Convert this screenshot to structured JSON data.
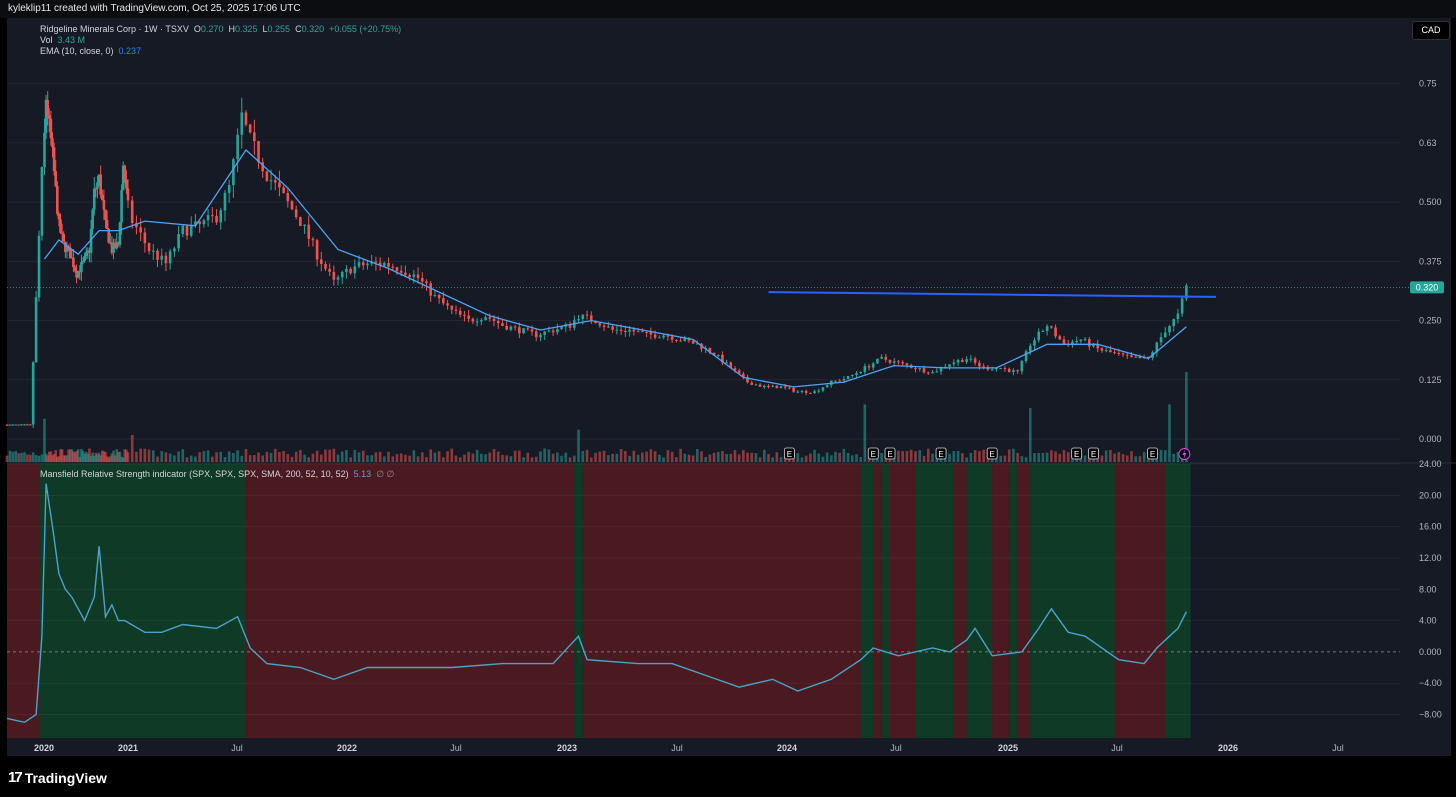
{
  "header": {
    "credit": "kyleklip11 created with TradingView.com, Oct 25, 2025 17:06 UTC"
  },
  "legend": {
    "symbol": "Ridgeline Minerals Corp · 1W · TSXV",
    "o_label": "O",
    "o_value": "0.270",
    "h_label": "H",
    "h_value": "0.325",
    "l_label": "L",
    "l_value": "0.255",
    "c_label": "C",
    "c_value": "0.320",
    "change": "+0.055 (+20.75%)",
    "vol_label": "Vol",
    "vol_value": "3.43 M",
    "ema_label": "EMA (10, close, 0)",
    "ema_value": "0.237",
    "mrs_label": "Mansfield Relative Strength indicator (SPX, SPX, SPX, SMA, 200, 52, 10, 52)",
    "mrs_value": "5.13",
    "mrs_extra": "∅  ∅"
  },
  "currency": "CAD",
  "footer": {
    "brand": "TradingView",
    "logo_mark": "17"
  },
  "colors": {
    "background": "#161a25",
    "up": "#26a69a",
    "down": "#ef5350",
    "ema": "#4fa3f7",
    "resistance": "#2962ff",
    "mrs_line": "#4aa3c9",
    "green_zone": "#0f3a26",
    "red_zone": "#4a1a20"
  },
  "chart_data": [
    {
      "type": "candlestick",
      "title": "Ridgeline Minerals Corp · 1W · TSXV",
      "current_price": "0.320",
      "y_ticks": [
        "0.75",
        "0.63",
        "0.500",
        "0.375",
        "0.250",
        "0.125",
        "0.000"
      ],
      "x_ticks": [
        "2020",
        "2021",
        "Jul",
        "2022",
        "Jul",
        "2023",
        "Jul",
        "2024",
        "Jul",
        "2025",
        "Jul",
        "2026",
        "Jul"
      ],
      "ylim": [
        0,
        0.8
      ],
      "close_path": [
        [
          "2019-10-04",
          0.03
        ],
        [
          "2019-11-29",
          0.03
        ],
        [
          "2019-12-27",
          0.56
        ],
        [
          "2020-01-10",
          0.72
        ],
        [
          "2020-02-07",
          0.6
        ],
        [
          "2020-03-06",
          0.45
        ],
        [
          "2020-03-27",
          0.41
        ],
        [
          "2020-04-24",
          0.39
        ],
        [
          "2020-05-22",
          0.35
        ],
        [
          "2020-06-19",
          0.37
        ],
        [
          "2020-07-17",
          0.4
        ],
        [
          "2020-08-07",
          0.52
        ],
        [
          "2020-08-28",
          0.55
        ],
        [
          "2020-09-25",
          0.45
        ],
        [
          "2020-10-23",
          0.4
        ],
        [
          "2020-11-20",
          0.41
        ],
        [
          "2020-12-11",
          0.58
        ],
        [
          "2021-01-08",
          0.46
        ],
        [
          "2021-02-05",
          0.4
        ],
        [
          "2021-03-05",
          0.37
        ],
        [
          "2021-04-02",
          0.44
        ],
        [
          "2021-04-30",
          0.45
        ],
        [
          "2021-05-28",
          0.47
        ],
        [
          "2021-06-18",
          0.53
        ],
        [
          "2021-07-09",
          0.68
        ],
        [
          "2021-07-23",
          0.63
        ],
        [
          "2021-08-20",
          0.56
        ],
        [
          "2021-09-17",
          0.51
        ],
        [
          "2021-10-15",
          0.46
        ],
        [
          "2021-11-12",
          0.39
        ],
        [
          "2021-12-10",
          0.33
        ],
        [
          "2022-01-07",
          0.36
        ],
        [
          "2022-02-04",
          0.37
        ],
        [
          "2022-03-04",
          0.37
        ],
        [
          "2022-04-01",
          0.36
        ],
        [
          "2022-04-29",
          0.34
        ],
        [
          "2022-05-27",
          0.3
        ],
        [
          "2022-06-24",
          0.27
        ],
        [
          "2022-07-22",
          0.25
        ],
        [
          "2022-08-19",
          0.26
        ],
        [
          "2022-09-16",
          0.24
        ],
        [
          "2022-10-14",
          0.23
        ],
        [
          "2022-11-11",
          0.22
        ],
        [
          "2022-12-09",
          0.23
        ],
        [
          "2023-01-06",
          0.24
        ],
        [
          "2023-01-20",
          0.26
        ],
        [
          "2023-02-17",
          0.25
        ],
        [
          "2023-03-17",
          0.23
        ],
        [
          "2023-04-14",
          0.23
        ],
        [
          "2023-05-12",
          0.22
        ],
        [
          "2023-06-09",
          0.22
        ],
        [
          "2023-07-07",
          0.21
        ],
        [
          "2023-08-04",
          0.2
        ],
        [
          "2023-09-01",
          0.18
        ],
        [
          "2023-09-29",
          0.15
        ],
        [
          "2023-10-27",
          0.12
        ],
        [
          "2023-11-24",
          0.11
        ],
        [
          "2023-12-22",
          0.11
        ],
        [
          "2024-01-19",
          0.1
        ],
        [
          "2024-02-16",
          0.1
        ],
        [
          "2024-03-15",
          0.12
        ],
        [
          "2024-04-12",
          0.13
        ],
        [
          "2024-05-10",
          0.15
        ],
        [
          "2024-06-07",
          0.17
        ],
        [
          "2024-07-05",
          0.16
        ],
        [
          "2024-08-02",
          0.15
        ],
        [
          "2024-08-30",
          0.14
        ],
        [
          "2024-09-27",
          0.16
        ],
        [
          "2024-10-25",
          0.17
        ],
        [
          "2024-11-22",
          0.15
        ],
        [
          "2024-12-20",
          0.15
        ],
        [
          "2025-01-17",
          0.14
        ],
        [
          "2025-02-07",
          0.2
        ],
        [
          "2025-03-07",
          0.24
        ],
        [
          "2025-04-04",
          0.2
        ],
        [
          "2025-05-02",
          0.21
        ],
        [
          "2025-05-30",
          0.19
        ],
        [
          "2025-06-27",
          0.18
        ],
        [
          "2025-07-25",
          0.17
        ],
        [
          "2025-08-22",
          0.17
        ],
        [
          "2025-09-19",
          0.23
        ],
        [
          "2025-10-10",
          0.26
        ],
        [
          "2025-10-24",
          0.32
        ]
      ],
      "ema_10": [
        [
          "2020-01-03",
          0.38
        ],
        [
          "2020-03-06",
          0.42
        ],
        [
          "2020-05-29",
          0.39
        ],
        [
          "2020-08-28",
          0.44
        ],
        [
          "2020-11-20",
          0.44
        ],
        [
          "2021-01-29",
          0.46
        ],
        [
          "2021-04-23",
          0.45
        ],
        [
          "2021-07-16",
          0.61
        ],
        [
          "2021-09-24",
          0.53
        ],
        [
          "2021-12-17",
          0.4
        ],
        [
          "2022-03-11",
          0.36
        ],
        [
          "2022-06-03",
          0.31
        ],
        [
          "2022-08-26",
          0.26
        ],
        [
          "2022-11-18",
          0.23
        ],
        [
          "2023-02-10",
          0.25
        ],
        [
          "2023-05-05",
          0.23
        ],
        [
          "2023-07-28",
          0.21
        ],
        [
          "2023-10-20",
          0.13
        ],
        [
          "2024-01-12",
          0.11
        ],
        [
          "2024-04-05",
          0.12
        ],
        [
          "2024-06-28",
          0.155
        ],
        [
          "2024-09-20",
          0.15
        ],
        [
          "2024-12-13",
          0.15
        ],
        [
          "2025-03-07",
          0.2
        ],
        [
          "2025-05-30",
          0.2
        ],
        [
          "2025-08-22",
          0.17
        ],
        [
          "2025-10-24",
          0.237
        ]
      ],
      "resistance_line": {
        "from": "2023-12-01",
        "to": "2025-12-12",
        "y_start": 0.31,
        "y_end": 0.3
      },
      "volume": {
        "label": "Vol",
        "last": "3.43 M",
        "spikes": [
          [
            "2020-01-03",
            2.4
          ],
          [
            "2021-01-08",
            1.5
          ],
          [
            "2023-01-20",
            1.8
          ],
          [
            "2024-05-10",
            3.2
          ],
          [
            "2025-02-07",
            3.0
          ],
          [
            "2025-09-26",
            3.2
          ],
          [
            "2025-10-24",
            5.0
          ]
        ]
      },
      "earnings_markers": [
        "2024-01-05",
        "2024-05-24",
        "2024-06-21",
        "2024-09-13",
        "2024-12-06",
        "2025-04-25",
        "2025-05-23",
        "2025-08-29"
      ]
    },
    {
      "type": "line",
      "title": "Mansfield Relative Strength indicator (SPX, SPX, SPX, SMA, 200, 52, 10, 52)",
      "last_value": "5.13",
      "y_ticks": [
        "24.00",
        "20.00",
        "16.00",
        "12.00",
        "8.00",
        "4.00",
        "0.000",
        "−4.00",
        "−8.00"
      ],
      "ylim": [
        -11,
        24
      ],
      "series": [
        [
          "2019-10-04",
          -8.5
        ],
        [
          "2019-11-15",
          -9.0
        ],
        [
          "2019-12-13",
          -8.0
        ],
        [
          "2019-12-27",
          2.0
        ],
        [
          "2020-01-10",
          21.5
        ],
        [
          "2020-02-07",
          16.0
        ],
        [
          "2020-03-06",
          10.0
        ],
        [
          "2020-04-03",
          8.0
        ],
        [
          "2020-05-01",
          7.0
        ],
        [
          "2020-05-29",
          5.5
        ],
        [
          "2020-06-26",
          4.0
        ],
        [
          "2020-08-07",
          7.0
        ],
        [
          "2020-08-28",
          13.5
        ],
        [
          "2020-09-25",
          4.5
        ],
        [
          "2020-10-23",
          6.0
        ],
        [
          "2020-11-20",
          4.0
        ],
        [
          "2020-12-18",
          4.0
        ],
        [
          "2021-01-29",
          2.5
        ],
        [
          "2021-02-26",
          2.5
        ],
        [
          "2021-04-02",
          3.5
        ],
        [
          "2021-05-28",
          3.0
        ],
        [
          "2021-07-02",
          4.5
        ],
        [
          "2021-07-23",
          0.5
        ],
        [
          "2021-08-20",
          -1.5
        ],
        [
          "2021-10-15",
          -2.0
        ],
        [
          "2021-12-10",
          -3.5
        ],
        [
          "2022-02-04",
          -2.0
        ],
        [
          "2022-04-01",
          -2.0
        ],
        [
          "2022-06-24",
          -2.0
        ],
        [
          "2022-09-16",
          -1.5
        ],
        [
          "2022-12-09",
          -1.5
        ],
        [
          "2023-01-20",
          2.0
        ],
        [
          "2023-02-03",
          -1.0
        ],
        [
          "2023-04-28",
          -1.5
        ],
        [
          "2023-06-23",
          -1.5
        ],
        [
          "2023-08-18",
          -3.0
        ],
        [
          "2023-10-13",
          -4.5
        ],
        [
          "2023-12-08",
          -3.5
        ],
        [
          "2024-01-19",
          -5.0
        ],
        [
          "2024-03-15",
          -3.5
        ],
        [
          "2024-05-03",
          -1.0
        ],
        [
          "2024-05-24",
          0.5
        ],
        [
          "2024-06-14",
          0.0
        ],
        [
          "2024-07-05",
          -0.5
        ],
        [
          "2024-08-30",
          0.5
        ],
        [
          "2024-09-27",
          0.0
        ],
        [
          "2024-10-25",
          1.5
        ],
        [
          "2024-11-08",
          3.0
        ],
        [
          "2024-12-06",
          -0.5
        ],
        [
          "2025-01-24",
          0.0
        ],
        [
          "2025-02-21",
          3.0
        ],
        [
          "2025-03-14",
          5.5
        ],
        [
          "2025-04-11",
          2.5
        ],
        [
          "2025-05-09",
          2.0
        ],
        [
          "2025-06-06",
          0.5
        ],
        [
          "2025-07-04",
          -1.0
        ],
        [
          "2025-08-15",
          -1.5
        ],
        [
          "2025-09-05",
          0.5
        ],
        [
          "2025-09-26",
          2.0
        ],
        [
          "2025-10-10",
          3.0
        ],
        [
          "2025-10-24",
          5.13
        ]
      ],
      "zones": [
        [
          "2019-10-04",
          "2019-12-20",
          "red"
        ],
        [
          "2019-12-20",
          "2021-07-16",
          "green"
        ],
        [
          "2021-07-16",
          "2023-01-13",
          "red"
        ],
        [
          "2023-01-13",
          "2023-01-27",
          "green"
        ],
        [
          "2023-01-27",
          "2024-05-03",
          "red"
        ],
        [
          "2024-05-03",
          "2024-05-24",
          "green"
        ],
        [
          "2024-05-24",
          "2024-06-07",
          "red"
        ],
        [
          "2024-06-07",
          "2024-06-21",
          "green"
        ],
        [
          "2024-06-21",
          "2024-08-02",
          "red"
        ],
        [
          "2024-08-02",
          "2024-10-04",
          "green"
        ],
        [
          "2024-10-04",
          "2024-10-25",
          "red"
        ],
        [
          "2024-10-25",
          "2024-12-06",
          "green"
        ],
        [
          "2024-12-06",
          "2025-01-03",
          "red"
        ],
        [
          "2025-01-03",
          "2025-01-17",
          "green"
        ],
        [
          "2025-01-17",
          "2025-02-07",
          "red"
        ],
        [
          "2025-02-07",
          "2025-06-27",
          "green"
        ],
        [
          "2025-06-27",
          "2025-09-19",
          "red"
        ],
        [
          "2025-09-19",
          "2025-10-31",
          "green"
        ]
      ]
    }
  ]
}
